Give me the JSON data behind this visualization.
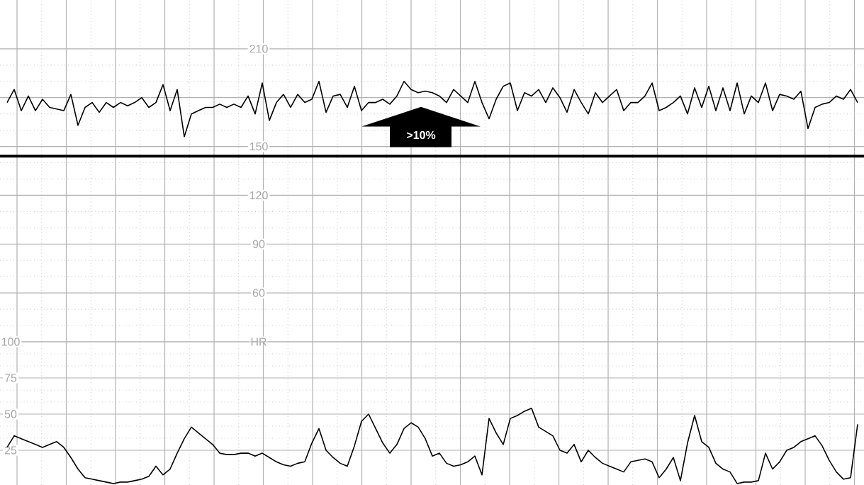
{
  "chart_data": [
    {
      "type": "line",
      "color": "#000000",
      "categories": [
        null,
        null,
        null,
        null,
        null,
        null,
        null,
        null,
        null,
        null,
        null,
        null,
        null,
        null,
        null,
        null,
        null,
        null,
        null,
        null,
        null,
        null,
        null,
        null,
        null,
        null,
        null,
        null,
        null,
        null,
        null,
        null,
        null,
        null,
        null,
        null,
        null,
        null,
        null,
        null,
        null,
        null,
        null,
        null,
        null,
        null,
        null,
        null,
        null,
        null,
        null,
        null,
        null,
        null,
        null,
        null,
        null,
        null,
        null,
        null,
        null,
        null,
        null,
        null,
        null,
        null,
        null,
        null,
        null,
        null,
        null,
        null,
        null,
        null,
        null,
        null,
        null,
        null,
        null,
        null,
        null,
        null,
        null,
        null,
        null,
        null,
        null,
        null,
        null,
        null,
        null,
        null,
        null,
        null,
        null,
        null,
        null,
        null,
        null,
        null,
        null,
        null,
        null,
        null,
        null,
        null,
        null,
        null,
        null,
        null,
        null,
        null,
        null,
        null,
        null,
        null,
        null,
        null,
        null,
        null,
        null
      ],
      "values": [
        177,
        185,
        172,
        181,
        172,
        179,
        174,
        173,
        172,
        182,
        163,
        174,
        177,
        171,
        177,
        174,
        177,
        175,
        177,
        180,
        174,
        177,
        188,
        172,
        185,
        156,
        170,
        172,
        174,
        174,
        176,
        174,
        176,
        174,
        181,
        170,
        189,
        166,
        177,
        182,
        174,
        182,
        177,
        179,
        190,
        171,
        181,
        182,
        174,
        187,
        172,
        177,
        177,
        179,
        176,
        181,
        190,
        185,
        183,
        184,
        183,
        181,
        177,
        185,
        181,
        177,
        190,
        177,
        167,
        179,
        187,
        189,
        172,
        183,
        181,
        185,
        177,
        186,
        180,
        171,
        185,
        177,
        170,
        183,
        177,
        181,
        185,
        172,
        177,
        177,
        181,
        189,
        172,
        174,
        177,
        181,
        170,
        186,
        174,
        187,
        172,
        186,
        172,
        189,
        170,
        181,
        177,
        189,
        172,
        182,
        181,
        179,
        184,
        161,
        174,
        176,
        177,
        181,
        179,
        185,
        177
      ],
      "ylim": [
        30,
        240
      ],
      "yticks": [
        {
          "value": 30,
          "label": "HR"
        },
        60,
        90,
        120,
        150,
        {
          "value": 180,
          "label": null
        },
        210
      ],
      "grid": true,
      "ref_lines": [
        {
          "axis": "y",
          "value": 144,
          "color": "#000000"
        }
      ],
      "annotations": [
        ">10%"
      ]
    },
    {
      "type": "line",
      "color": "#000000",
      "categories": [
        null,
        null,
        null,
        null,
        null,
        null,
        null,
        null,
        null,
        null,
        null,
        null,
        null,
        null,
        null,
        null,
        null,
        null,
        null,
        null,
        null,
        null,
        null,
        null,
        null,
        null,
        null,
        null,
        null,
        null,
        null,
        null,
        null,
        null,
        null,
        null,
        null,
        null,
        null,
        null,
        null,
        null,
        null,
        null,
        null,
        null,
        null,
        null,
        null,
        null,
        null,
        null,
        null,
        null,
        null,
        null,
        null,
        null,
        null,
        null,
        null,
        null,
        null,
        null,
        null,
        null,
        null,
        null,
        null,
        null,
        null,
        null,
        null,
        null,
        null,
        null,
        null,
        null,
        null,
        null,
        null,
        null,
        null,
        null,
        null,
        null,
        null,
        null,
        null,
        null,
        null,
        null,
        null,
        null,
        null,
        null,
        null,
        null,
        null,
        null,
        null,
        null,
        null,
        null,
        null,
        null,
        null,
        null,
        null,
        null,
        null,
        null,
        null,
        null,
        null,
        null,
        null,
        null,
        null,
        null,
        null
      ],
      "values": [
        27,
        35,
        33,
        31,
        29,
        27,
        29,
        31,
        27,
        20,
        12,
        6,
        5,
        4,
        3,
        2,
        3,
        3,
        4,
        5,
        7,
        14,
        8,
        12,
        23,
        33,
        41,
        37,
        33,
        29,
        23,
        22,
        22,
        23,
        23,
        21,
        23,
        20,
        17,
        15,
        14,
        16,
        17,
        30,
        40,
        25,
        20,
        16,
        14,
        28,
        45,
        50,
        40,
        30,
        23,
        29,
        40,
        44,
        41,
        33,
        21,
        23,
        16,
        14,
        15,
        17,
        21,
        8,
        47,
        37,
        29,
        47,
        49,
        52,
        54,
        41,
        38,
        35,
        25,
        23,
        29,
        17,
        25,
        20,
        16,
        14,
        12,
        10,
        17,
        18,
        19,
        17,
        6,
        12,
        20,
        4,
        30,
        49,
        31,
        27,
        16,
        12,
        10,
        2,
        3,
        3,
        4,
        23,
        12,
        17,
        25,
        27,
        31,
        33,
        35,
        28,
        18,
        10,
        5,
        6,
        43
      ],
      "ylim": [
        1,
        100
      ],
      "yticks": [
        25,
        50,
        75,
        100
      ],
      "grid": true
    }
  ]
}
